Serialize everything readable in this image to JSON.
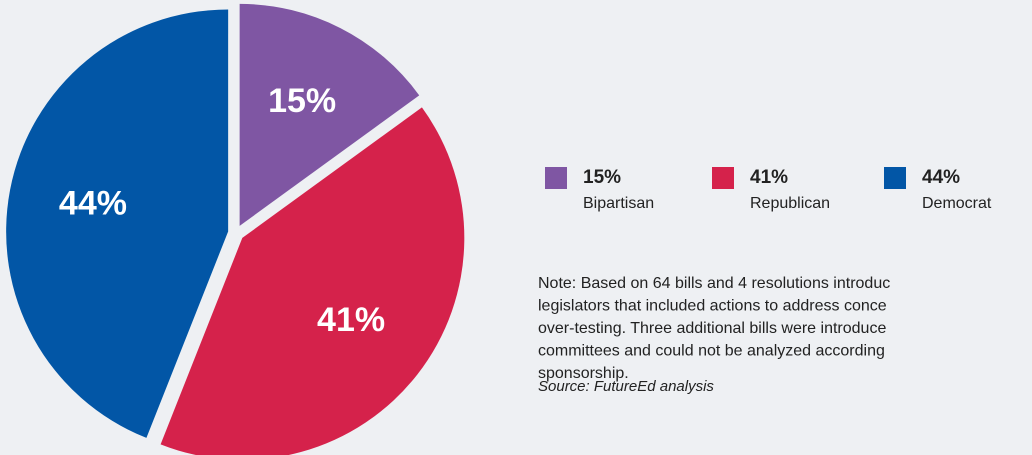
{
  "chart_data": {
    "type": "pie",
    "categories": [
      "Bipartisan",
      "Republican",
      "Democrat"
    ],
    "values": [
      15,
      41,
      44
    ],
    "value_labels": [
      "15%",
      "41%",
      "44%"
    ],
    "colors": [
      "#7f56a3",
      "#d5224b",
      "#0256a6"
    ],
    "note_lines": [
      "Note: Based on 64 bills and 4 resolutions introduc",
      "legislators that included actions to address conce",
      "over-testing. Three additional bills were introduce",
      "committees and could not be analyzed according",
      "sponsorship."
    ],
    "source": "Source: FutureEd analysis"
  }
}
